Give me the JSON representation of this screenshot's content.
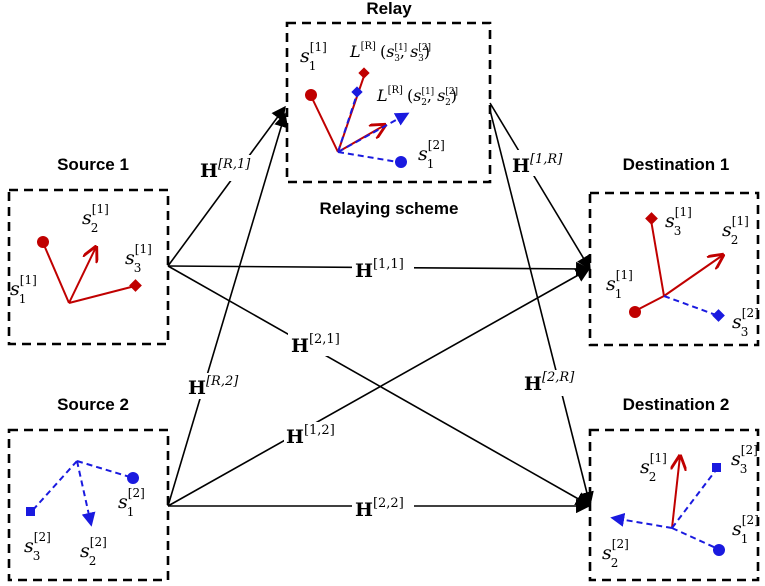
{
  "titles": {
    "relay": "Relay",
    "relaying_scheme": "Relaying scheme",
    "source1": "Source 1",
    "source2": "Source 2",
    "dest1": "Destination 1",
    "dest2": "Destination 2"
  },
  "channels": {
    "h_r1": "[R,1]",
    "h_r2": "[R,2]",
    "h_1r": "[1,R]",
    "h_2r": "[2,R]",
    "h_11": "[1,1]",
    "h_21": "[2,1]",
    "h_12": "[1,2]",
    "h_22": "[2,2]",
    "h_base": "H"
  },
  "symbols": {
    "s": "s",
    "L": "L",
    "sup_1": "[1]",
    "sup_2": "[2]",
    "sub_1": "1",
    "sub_2": "2",
    "sub_3": "3",
    "sup_R": "[R]"
  },
  "colors": {
    "user1": "#c00000",
    "user2": "#1a1adf",
    "frame": "#000000"
  }
}
